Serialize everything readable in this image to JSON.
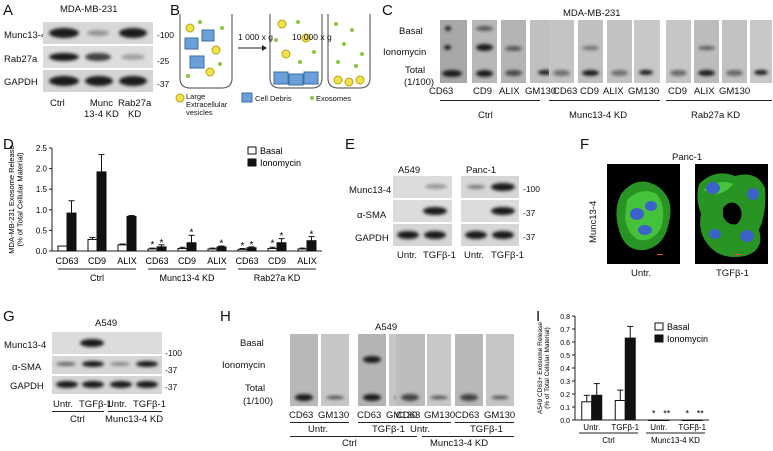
{
  "panels": {
    "A": "A",
    "B": "B",
    "C": "C",
    "D": "D",
    "E": "E",
    "F": "F",
    "G": "G",
    "H": "H",
    "I": "I"
  },
  "panelA": {
    "title": "MDA-MB-231",
    "rows": [
      "Munc13-4",
      "Rab27a",
      "GAPDH"
    ],
    "mw": [
      "-100",
      "-25",
      "-37"
    ],
    "lanes": [
      "Ctrl",
      "Munc\n13-4 KD",
      "Rab27a\nKD"
    ],
    "lane1": "Ctrl",
    "lane2a": "Munc",
    "lane2b": "13-4 KD",
    "lane3a": "Rab27a",
    "lane3b": "KD"
  },
  "panelB": {
    "spin1": "1 000 x g",
    "spin2": "10 000 x g",
    "legend1a": "Large",
    "legend1b": "Extracellular",
    "legend1c": "vesicles",
    "legend2": "Cell Debris",
    "legend3": "Exosomes"
  },
  "panelC": {
    "title": "MDA-MB-231",
    "rows": [
      "Basal",
      "Ionomycin",
      "Total",
      "(1/100)"
    ],
    "markers": [
      "CD63",
      "CD9",
      "ALIX",
      "GM130"
    ],
    "groups": [
      "Ctrl",
      "Munc13-4 KD",
      "Rab27a KD"
    ]
  },
  "panelE": {
    "cols": [
      "A549",
      "Panc-1"
    ],
    "rows": [
      "Munc13-4",
      "α-SMA",
      "GAPDH"
    ],
    "mw": [
      "-100",
      "-37",
      "-37"
    ],
    "lanes": [
      "Untr.",
      "TGFβ-1",
      "Untr.",
      "TGFβ-1"
    ]
  },
  "panelF": {
    "title": "Panc-1",
    "ylabel": "Munc13-4",
    "lanes": [
      "Untr.",
      "TGFβ-1"
    ]
  },
  "panelG": {
    "title": "A549",
    "rows": [
      "Munc13-4",
      "α-SMA",
      "GAPDH"
    ],
    "mw": [
      "-100",
      "-37",
      "-37"
    ],
    "lanes": [
      "Untr.",
      "TGFβ-1",
      "Untr.",
      "TGFβ-1"
    ],
    "groups": [
      "Ctrl",
      "Munc13-4 KD"
    ]
  },
  "panelH": {
    "title": "A549",
    "rows": [
      "Basal",
      "Ionomycin",
      "Total",
      "(1/100)"
    ],
    "markers": [
      "CD63",
      "GM130",
      "CD63",
      "GM130",
      "CD63",
      "GM130",
      "CD63",
      "GM130"
    ],
    "lanes": [
      "Untr.",
      "TGFβ-1",
      "Untr.",
      "TGFβ-1"
    ],
    "groups": [
      "Ctrl",
      "Munc13-4 KD"
    ]
  },
  "chart_data": [
    {
      "type": "bar",
      "panel": "D",
      "ylabel": "MDA-MB-231 Exosome Release\n(% of Total Cellular Material)",
      "ylim": [
        0,
        2.5
      ],
      "yticks": [
        "0.0",
        "0.5",
        "1.0",
        "1.5",
        "2.0",
        "2.5"
      ],
      "categories": [
        "CD63",
        "CD9",
        "ALIX",
        "CD63",
        "CD9",
        "ALIX",
        "CD63",
        "CD9",
        "ALIX"
      ],
      "groups": [
        "Ctrl",
        "Munc13-4 KD",
        "Rab27a KD"
      ],
      "legend_position": "top-right",
      "series": [
        {
          "name": "Basal",
          "values": [
            0.12,
            0.28,
            0.15,
            0.05,
            0.06,
            0.05,
            0.04,
            0.06,
            0.05
          ],
          "errors": [
            0.0,
            0.05,
            0.02,
            0.02,
            0.03,
            0.02,
            0.02,
            0.03,
            0.02
          ]
        },
        {
          "name": "Ionomycin",
          "values": [
            0.92,
            1.92,
            0.84,
            0.1,
            0.2,
            0.1,
            0.08,
            0.2,
            0.25
          ],
          "errors": [
            0.3,
            0.42,
            0.02,
            0.05,
            0.18,
            0.02,
            0.02,
            0.1,
            0.1
          ]
        }
      ],
      "significance": [
        "*",
        "*",
        "*",
        "*",
        "*",
        "*",
        "*",
        "*",
        "*",
        "*",
        "*"
      ]
    },
    {
      "type": "bar",
      "panel": "I",
      "ylabel": "A549 CD63+ Exosome Release\n(% of Total Cellular Material)",
      "ylim": [
        0,
        0.8
      ],
      "yticks": [
        "0.0",
        "0.1",
        "0.2",
        "0.3",
        "0.4",
        "0.5",
        "0.6",
        "0.7",
        "0.8"
      ],
      "categories": [
        "Untr.",
        "TGFβ-1",
        "Untr.",
        "TGFβ-1"
      ],
      "groups": [
        "Ctrl",
        "Munc13-4 KD"
      ],
      "legend_position": "top-right",
      "series": [
        {
          "name": "Basal",
          "values": [
            0.14,
            0.15,
            0.0,
            0.0
          ],
          "errors": [
            0.05,
            0.08,
            0,
            0
          ]
        },
        {
          "name": "Ionomycin",
          "values": [
            0.19,
            0.63,
            0.0,
            0.0
          ],
          "errors": [
            0.09,
            0.09,
            0,
            0
          ]
        }
      ],
      "significance": [
        "*",
        "**",
        "*",
        "**"
      ]
    }
  ]
}
